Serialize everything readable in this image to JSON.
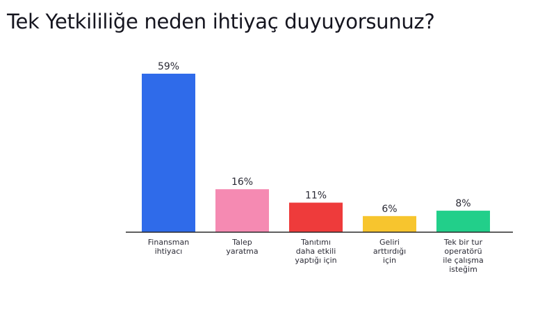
{
  "page": {
    "title": "Tek Yetkililiğe neden ihtiyaç duyuyorsunuz?"
  },
  "chart_data": {
    "type": "bar",
    "title": "Tek Yetkililiğe neden ihtiyaç duyuyorsunuz?",
    "xlabel": "",
    "ylabel": "",
    "ylim": [
      0,
      59
    ],
    "grid": false,
    "legend": "none",
    "value_suffix": "%",
    "categories": [
      [
        "Finansman",
        "ihtiyacı"
      ],
      [
        "Talep",
        "yaratma"
      ],
      [
        "Tanıtımı",
        "daha etkili",
        "yaptığı için"
      ],
      [
        "Geliri",
        "arttırdığı",
        "için"
      ],
      [
        "Tek bir tur",
        "operatörü",
        "ile çalışma",
        "isteğim"
      ]
    ],
    "values": [
      59,
      16,
      11,
      6,
      8
    ],
    "value_labels": [
      "59%",
      "16%",
      "11%",
      "6%",
      "8%"
    ],
    "colors": [
      "#2f6bea",
      "#f58ab2",
      "#ee3b3b",
      "#f7c52e",
      "#22cf8a"
    ]
  }
}
